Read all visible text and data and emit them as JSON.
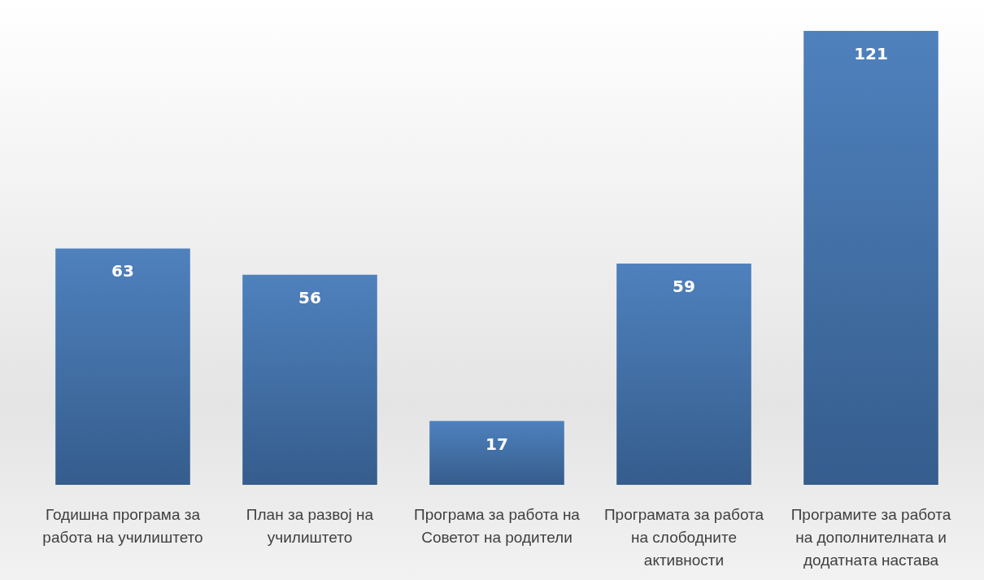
{
  "chart_data": {
    "type": "bar",
    "categories": [
      "Годишна програма за работа на училиштето",
      "План за развој на училиштето",
      "Програма за работа на Советот на родители",
      "Програмата за работа на слободните активности",
      "Програмите за работа на дополнителната и додатната настава"
    ],
    "values": [
      63,
      56,
      17,
      59,
      121
    ],
    "color": "#4f81bd",
    "data_labels": true
  }
}
